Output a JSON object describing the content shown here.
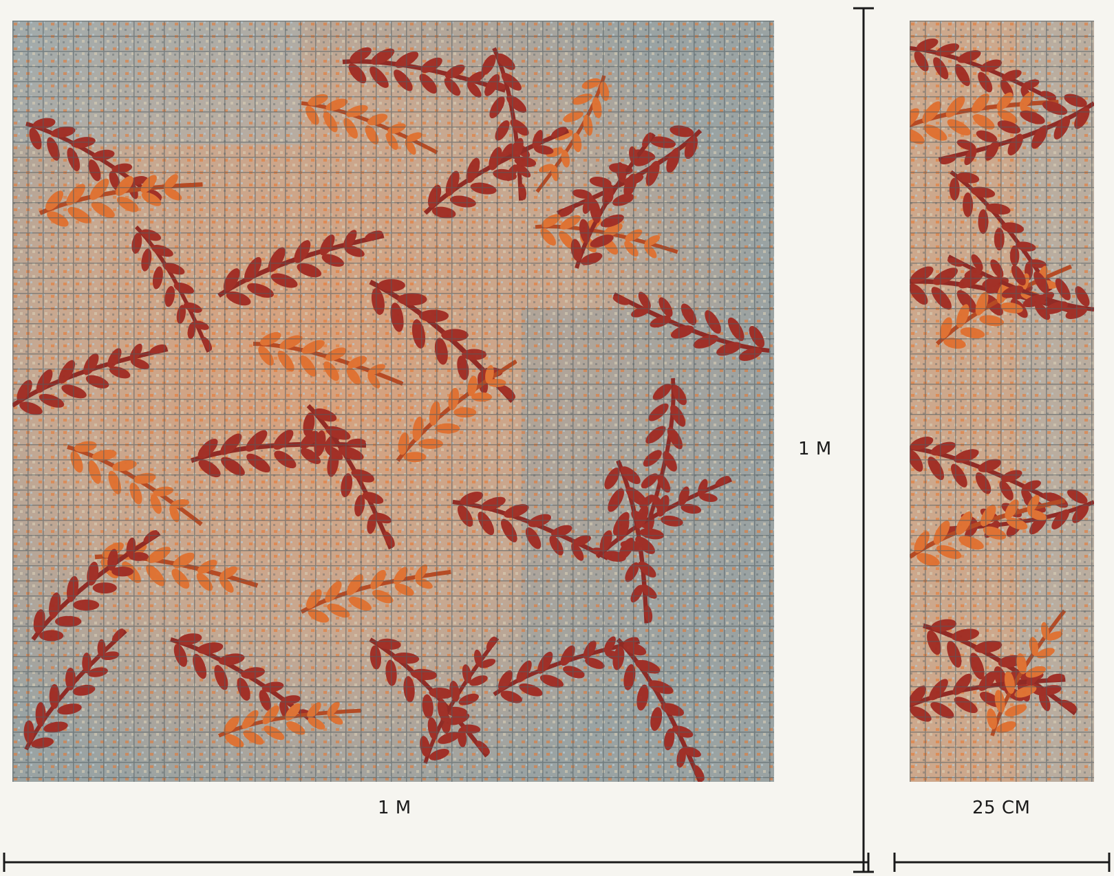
{
  "labels": {
    "large_width": "1 M",
    "small_width": "25 CM",
    "height": "1 M"
  },
  "colors": {
    "background": "#f6f5f0",
    "ruler": "#1a1a1a",
    "leaf_dark_red": "#9c2a24",
    "leaf_red": "#b3341f",
    "leaf_orange": "#e8742c",
    "leaf_amber": "#c8682a",
    "ground_grey": "#9aa3a3",
    "ground_blue": "#b8c8cf",
    "grid_dark": "#4f5b60",
    "ground_cream": "#d8cfb6"
  }
}
